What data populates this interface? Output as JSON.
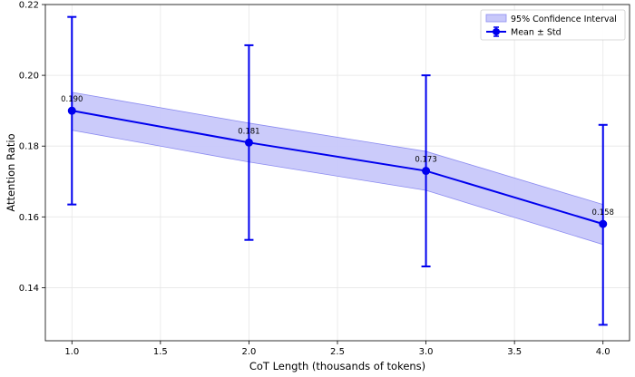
{
  "chart_data": {
    "type": "line",
    "title": "",
    "xlabel": "CoT Length (thousands of tokens)",
    "ylabel": "Attention Ratio",
    "xlim": [
      0.85,
      4.15
    ],
    "ylim": [
      0.125,
      0.22
    ],
    "x_ticks": [
      1.0,
      1.5,
      2.0,
      2.5,
      3.0,
      3.5,
      4.0
    ],
    "x_tick_labels": [
      "1.0",
      "1.5",
      "2.0",
      "2.5",
      "3.0",
      "3.5",
      "4.0"
    ],
    "y_ticks": [
      0.14,
      0.16,
      0.18,
      0.2,
      0.22
    ],
    "y_tick_labels": [
      "0.14",
      "0.16",
      "0.18",
      "0.20",
      "0.22"
    ],
    "grid": true,
    "legend_position": "top-right",
    "colors": {
      "line": "#0000ee",
      "band_fill": "#c8c8fa",
      "band_edge": "#8c8cf0",
      "grid": "#e6e6e6"
    },
    "x": [
      1.0,
      2.0,
      3.0,
      4.0
    ],
    "series": [
      {
        "name": "Mean ± Std",
        "values": [
          0.19,
          0.181,
          0.173,
          0.158
        ],
        "err_low": [
          0.1635,
          0.1535,
          0.146,
          0.1295
        ],
        "err_high": [
          0.2165,
          0.2085,
          0.2,
          0.186
        ],
        "labels": [
          "0.190",
          "0.181",
          "0.173",
          "0.158"
        ]
      },
      {
        "name": "95% Confidence Interval",
        "ci_low": [
          0.1845,
          0.1755,
          0.1675,
          0.1522
        ],
        "ci_high": [
          0.1952,
          0.1865,
          0.1785,
          0.1635
        ]
      }
    ]
  }
}
